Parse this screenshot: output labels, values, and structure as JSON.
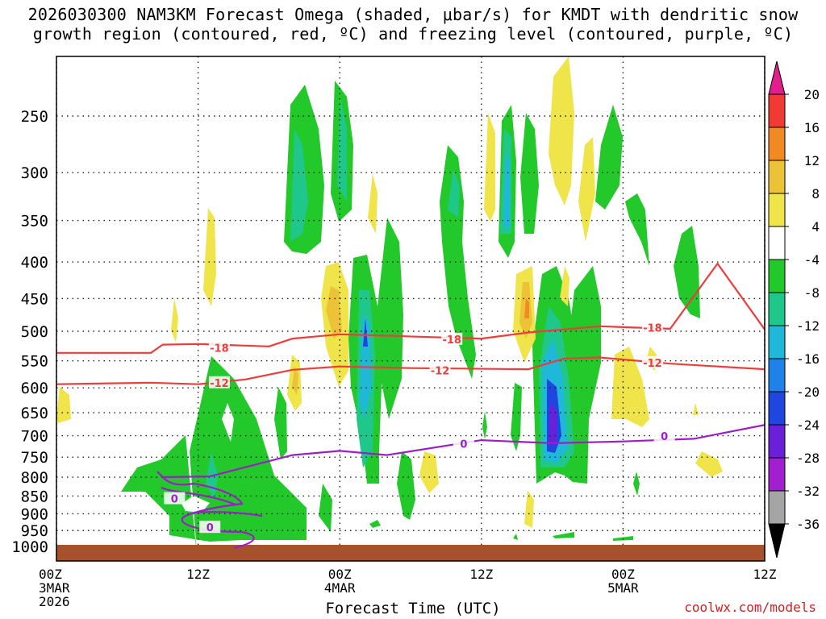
{
  "title_line1": "2026030300 NAM3KM Forecast Omega (shaded, μbar/s) for KMDT with dendritic snow",
  "title_line2": "growth region (contoured, red, ºC) and freezing level (contoured, purple, ºC)",
  "credit": "coolwx.com/models",
  "chart_data": {
    "type": "time-height cross section",
    "title": "2026030300 NAM3KM Forecast Omega (shaded, μbar/s) for KMDT with dendritic snow growth region (contoured, red, ºC) and freezing level (contoured, purple, ºC)",
    "xlabel": "Forecast Time (UTC)",
    "x_range_hours": [
      0,
      48
    ],
    "x_ticks": [
      {
        "hour": 0,
        "lines": [
          "00Z",
          "3MAR",
          "2026"
        ]
      },
      {
        "hour": 12,
        "lines": [
          "12Z"
        ]
      },
      {
        "hour": 24,
        "lines": [
          "00Z",
          "4MAR"
        ]
      },
      {
        "hour": 36,
        "lines": [
          "12Z"
        ]
      },
      {
        "hour": 48,
        "lines": [
          "00Z",
          "5MAR"
        ]
      },
      {
        "hour": 60,
        "lines": [
          "12Z"
        ]
      }
    ],
    "y_axis": "pressure (hPa), reversed",
    "y_ticks": [
      250,
      300,
      350,
      400,
      450,
      500,
      550,
      600,
      650,
      700,
      750,
      800,
      850,
      900,
      950,
      1000
    ],
    "ylim": [
      1025,
      200
    ],
    "grid": "dotted",
    "colorbar": {
      "labels": [
        "20",
        "16",
        "12",
        "8",
        "4",
        "-4",
        "-8",
        "-12",
        "-16",
        "-20",
        "-24",
        "-28",
        "-32",
        "-36"
      ],
      "colors": [
        "#e21d8c",
        "#f03a33",
        "#f28a24",
        "#ecc239",
        "#efe44a",
        "#ffffff",
        "#23c82b",
        "#1fc78a",
        "#20b8d8",
        "#1f82e8",
        "#2046e0",
        "#6a1fd9",
        "#a21fcf",
        "#a5a5a5",
        "#000000"
      ]
    },
    "contours": [
      {
        "label": "-18",
        "color": "#ee3c3c",
        "points": [
          [
            0,
            536
          ],
          [
            8,
            536
          ],
          [
            9,
            522
          ],
          [
            12,
            521
          ],
          [
            18,
            525
          ],
          [
            20,
            512
          ],
          [
            24,
            505
          ],
          [
            36,
            512
          ],
          [
            40,
            502
          ],
          [
            46,
            492
          ],
          [
            52,
            496
          ],
          [
            56,
            402
          ],
          [
            60,
            497
          ]
        ]
      },
      {
        "label": "-12",
        "color": "#ee3c3c",
        "points": [
          [
            0,
            593
          ],
          [
            8,
            590
          ],
          [
            12,
            593
          ],
          [
            16,
            584
          ],
          [
            20,
            566
          ],
          [
            24,
            560
          ],
          [
            30,
            563
          ],
          [
            40,
            565
          ],
          [
            43,
            546
          ],
          [
            46,
            544
          ],
          [
            52,
            555
          ],
          [
            60,
            565
          ]
        ]
      },
      {
        "label": "0",
        "color": "#9a1fc4",
        "points": [
          [
            9,
            800
          ],
          [
            13,
            798
          ],
          [
            20,
            745
          ],
          [
            24,
            735
          ],
          [
            28,
            745
          ],
          [
            36,
            710
          ],
          [
            42,
            717
          ],
          [
            48,
            713
          ],
          [
            54,
            707
          ],
          [
            60,
            676
          ]
        ]
      }
    ],
    "contour_labels": [
      {
        "text": "-18",
        "hour": 13.8,
        "hpa": 527,
        "color": "#ee3c3c"
      },
      {
        "text": "-18",
        "hour": 33.5,
        "hpa": 513,
        "color": "#ee3c3c"
      },
      {
        "text": "-18",
        "hour": 50.5,
        "hpa": 494,
        "color": "#ee3c3c"
      },
      {
        "text": "-12",
        "hour": 13.8,
        "hpa": 590,
        "color": "#ee3c3c"
      },
      {
        "text": "-12",
        "hour": 32.5,
        "hpa": 567,
        "color": "#ee3c3c"
      },
      {
        "text": "-12",
        "hour": 50.5,
        "hpa": 553,
        "color": "#ee3c3c"
      },
      {
        "text": "0",
        "hour": 34.5,
        "hpa": 718,
        "color": "#9a1fc4"
      },
      {
        "text": "0",
        "hour": 51.5,
        "hpa": 701,
        "color": "#9a1fc4"
      },
      {
        "text": "0",
        "hour": 10,
        "hpa": 857,
        "color": "#9a1fc4"
      },
      {
        "text": "0",
        "hour": 13,
        "hpa": 940,
        "color": "#9a1fc4"
      }
    ],
    "ground_color": "#a5522d"
  }
}
